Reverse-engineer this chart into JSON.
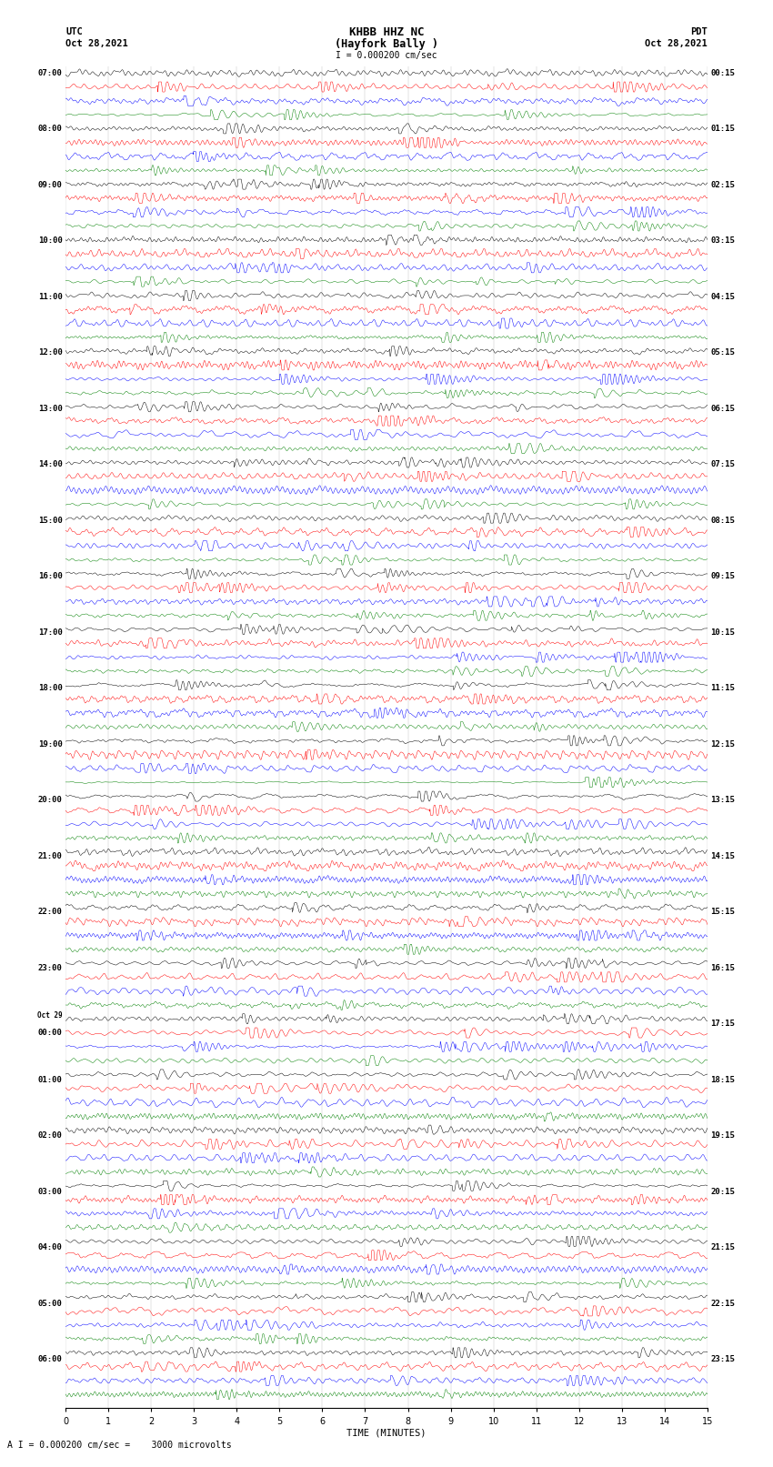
{
  "title_line1": "KHBB HHZ NC",
  "title_line2": "(Hayfork Bally )",
  "scale_label": "I = 0.000200 cm/sec",
  "left_header": "UTC",
  "left_date": "Oct 28,2021",
  "right_header": "PDT",
  "right_date": "Oct 28,2021",
  "bottom_label": "TIME (MINUTES)",
  "bottom_note": "A I = 0.000200 cm/sec =    3000 microvolts",
  "xlim": [
    0,
    15
  ],
  "xticks": [
    0,
    1,
    2,
    3,
    4,
    5,
    6,
    7,
    8,
    9,
    10,
    11,
    12,
    13,
    14,
    15
  ],
  "trace_colors": [
    "black",
    "red",
    "blue",
    "green"
  ],
  "left_times": [
    "07:00",
    "08:00",
    "09:00",
    "10:00",
    "11:00",
    "12:00",
    "13:00",
    "14:00",
    "15:00",
    "16:00",
    "17:00",
    "18:00",
    "19:00",
    "20:00",
    "21:00",
    "22:00",
    "23:00",
    "Oct 29\n00:00",
    "01:00",
    "02:00",
    "03:00",
    "04:00",
    "05:00",
    "06:00"
  ],
  "right_times": [
    "00:15",
    "01:15",
    "02:15",
    "03:15",
    "04:15",
    "05:15",
    "06:15",
    "07:15",
    "08:15",
    "09:15",
    "10:15",
    "11:15",
    "12:15",
    "13:15",
    "14:15",
    "15:15",
    "16:15",
    "17:15",
    "18:15",
    "19:15",
    "20:15",
    "21:15",
    "22:15",
    "23:15"
  ],
  "n_blocks": 24,
  "n_traces_per_block": 4,
  "fig_width": 8.5,
  "fig_height": 16.13,
  "bg_color": "white"
}
